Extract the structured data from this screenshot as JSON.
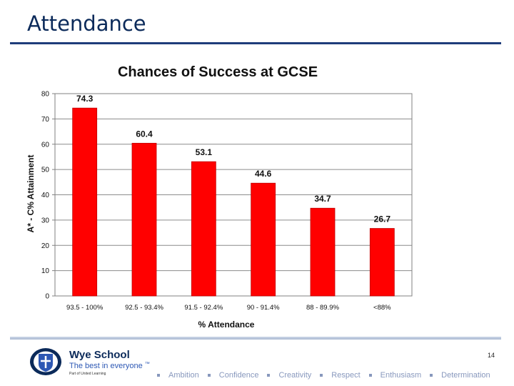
{
  "slide": {
    "title": "Attendance",
    "page_number": "14"
  },
  "chart_data": {
    "type": "bar",
    "title": "Chances of Success at GCSE",
    "xlabel": "% Attendance",
    "ylabel": "A* - C% Attainment",
    "ylim": [
      0,
      80
    ],
    "yticks": [
      0,
      10,
      20,
      30,
      40,
      50,
      60,
      70,
      80
    ],
    "grid": true,
    "categories": [
      "93.5 - 100%",
      "92.5 - 93.4%",
      "91.5 - 92.4%",
      "90 - 91.4%",
      "88 - 89.9%",
      "<88%"
    ],
    "values": [
      74.3,
      60.4,
      53.1,
      44.6,
      34.7,
      26.7
    ],
    "value_labels": [
      "74.3",
      "60.4",
      "53.1",
      "44.6",
      "34.7",
      "26.7"
    ],
    "bar_color": "#ff0000"
  },
  "footer": {
    "school_name": "Wye School",
    "tagline": "The best in everyone",
    "tagline_mark": "™",
    "sub_text": "Part of United Learning",
    "values": [
      "Ambition",
      "Confidence",
      "Creativity",
      "Respect",
      "Enthusiasm",
      "Determination"
    ]
  }
}
